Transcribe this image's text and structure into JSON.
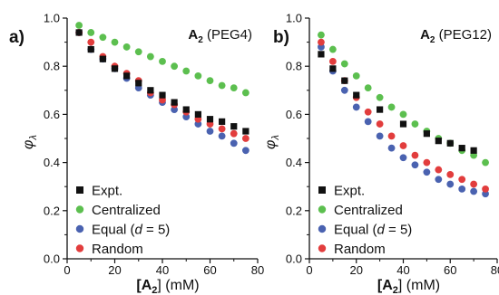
{
  "chart_data": [
    {
      "type": "scatter",
      "panel_label": "a)",
      "title_main": "A",
      "title_sub": "2",
      "title_rest": " (PEG4)",
      "xlabel": {
        "pre": "[",
        "main": "A",
        "sub": "2",
        "post": "] (mM)"
      },
      "ylabel": {
        "main": "φ",
        "sub": "λ"
      },
      "xlim": [
        0,
        80
      ],
      "ylim": [
        0.0,
        1.0
      ],
      "xticks": [
        "0",
        "20",
        "40",
        "60",
        "80"
      ],
      "yticks": [
        "0.0",
        "0.2",
        "0.4",
        "0.6",
        "0.8",
        "1.0"
      ],
      "grid": false,
      "legend_position": "bottom-left",
      "series": [
        {
          "name": "Expt.",
          "marker": "square",
          "color": "#111111",
          "x": [
            5,
            10,
            15,
            20,
            25,
            30,
            35,
            40,
            45,
            50,
            55,
            60,
            65,
            70,
            75
          ],
          "y": [
            0.94,
            0.87,
            0.83,
            0.79,
            0.76,
            0.73,
            0.7,
            0.68,
            0.65,
            0.62,
            0.6,
            0.58,
            0.57,
            0.55,
            0.53
          ]
        },
        {
          "name": "Centralized",
          "marker": "circle",
          "color": "#5cbf4f",
          "x": [
            5,
            10,
            15,
            20,
            25,
            30,
            35,
            40,
            45,
            50,
            55,
            60,
            65,
            70,
            75
          ],
          "y": [
            0.97,
            0.94,
            0.92,
            0.9,
            0.88,
            0.86,
            0.84,
            0.82,
            0.8,
            0.78,
            0.76,
            0.74,
            0.72,
            0.71,
            0.69
          ]
        },
        {
          "name": "Equal (d = 5)",
          "name_parts": [
            "Equal (",
            "d",
            " = 5)"
          ],
          "marker": "circle",
          "color": "#4a62b0",
          "x": [
            5,
            10,
            15,
            20,
            25,
            30,
            35,
            40,
            45,
            50,
            55,
            60,
            65,
            70,
            75
          ],
          "y": [
            0.94,
            0.87,
            0.83,
            0.79,
            0.75,
            0.71,
            0.68,
            0.65,
            0.62,
            0.59,
            0.56,
            0.53,
            0.51,
            0.48,
            0.45
          ]
        },
        {
          "name": "Random",
          "marker": "circle",
          "color": "#e23d3d",
          "x": [
            5,
            10,
            15,
            20,
            25,
            30,
            35,
            40,
            45,
            50,
            55,
            60,
            65,
            70,
            75
          ],
          "y": [
            0.94,
            0.9,
            0.84,
            0.8,
            0.77,
            0.74,
            0.69,
            0.66,
            0.64,
            0.61,
            0.58,
            0.56,
            0.54,
            0.52,
            0.5
          ]
        }
      ]
    },
    {
      "type": "scatter",
      "panel_label": "b)",
      "title_main": "A",
      "title_sub": "2",
      "title_rest": " (PEG12)",
      "xlabel": {
        "pre": "[",
        "main": "A",
        "sub": "2",
        "post": "] (mM)"
      },
      "ylabel": {
        "main": "φ",
        "sub": "λ"
      },
      "xlim": [
        0,
        80
      ],
      "ylim": [
        0.0,
        1.0
      ],
      "xticks": [
        "0",
        "20",
        "40",
        "60",
        "80"
      ],
      "yticks": [
        "0.0",
        "0.2",
        "0.4",
        "0.6",
        "0.8",
        "1.0"
      ],
      "grid": false,
      "legend_position": "bottom-left",
      "series": [
        {
          "name": "Expt.",
          "marker": "square",
          "color": "#111111",
          "x": [
            5,
            10,
            15,
            20,
            30,
            40,
            50,
            55,
            60,
            65,
            70
          ],
          "y": [
            0.85,
            0.79,
            0.74,
            0.68,
            0.62,
            0.56,
            0.52,
            0.49,
            0.48,
            0.46,
            0.45
          ]
        },
        {
          "name": "Centralized",
          "marker": "circle",
          "color": "#5cbf4f",
          "x": [
            5,
            10,
            15,
            20,
            25,
            30,
            35,
            40,
            45,
            50,
            55,
            60,
            65,
            70,
            75
          ],
          "y": [
            0.93,
            0.87,
            0.81,
            0.76,
            0.71,
            0.67,
            0.63,
            0.6,
            0.56,
            0.53,
            0.5,
            0.48,
            0.45,
            0.43,
            0.4
          ]
        },
        {
          "name": "Equal (d = 5)",
          "name_parts": [
            "Equal (",
            "d",
            " = 5)"
          ],
          "marker": "circle",
          "color": "#4a62b0",
          "x": [
            5,
            10,
            15,
            20,
            25,
            30,
            35,
            40,
            45,
            50,
            55,
            60,
            65,
            70,
            75
          ],
          "y": [
            0.88,
            0.78,
            0.7,
            0.63,
            0.57,
            0.51,
            0.46,
            0.42,
            0.39,
            0.36,
            0.33,
            0.31,
            0.29,
            0.28,
            0.27
          ]
        },
        {
          "name": "Random",
          "marker": "circle",
          "color": "#e23d3d",
          "x": [
            5,
            10,
            15,
            20,
            25,
            30,
            35,
            40,
            45,
            50,
            55,
            60,
            65,
            70,
            75
          ],
          "y": [
            0.9,
            0.82,
            0.74,
            0.67,
            0.61,
            0.56,
            0.51,
            0.47,
            0.43,
            0.4,
            0.37,
            0.35,
            0.33,
            0.31,
            0.29
          ]
        }
      ]
    }
  ]
}
